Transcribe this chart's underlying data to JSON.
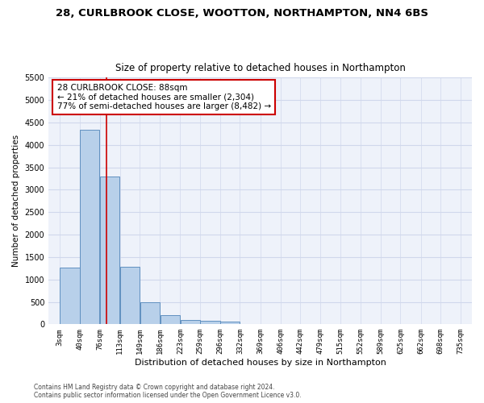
{
  "title": "28, CURLBROOK CLOSE, WOOTTON, NORTHAMPTON, NN4 6BS",
  "subtitle": "Size of property relative to detached houses in Northampton",
  "xlabel": "Distribution of detached houses by size in Northampton",
  "ylabel": "Number of detached properties",
  "footnote": "Contains HM Land Registry data © Crown copyright and database right 2024.\nContains public sector information licensed under the Open Government Licence v3.0.",
  "bar_values": [
    1260,
    4330,
    3300,
    1280,
    490,
    210,
    90,
    70,
    60,
    0,
    0,
    0,
    0,
    0,
    0,
    0,
    0,
    0,
    0,
    0
  ],
  "bin_edges": [
    3,
    40,
    76,
    113,
    149,
    186,
    223,
    259,
    296,
    332,
    369,
    406,
    442,
    479,
    515,
    552,
    589,
    625,
    662,
    698,
    735
  ],
  "bar_color": "#b8d0ea",
  "bar_edge_color": "#6090c0",
  "property_size": 88,
  "property_label": "28 CURLBROOK CLOSE: 88sqm",
  "pct_smaller": 21,
  "n_smaller": 2304,
  "pct_larger_semi": 77,
  "n_larger_semi": 8482,
  "ylim": [
    0,
    5500
  ],
  "yticks": [
    0,
    500,
    1000,
    1500,
    2000,
    2500,
    3000,
    3500,
    4000,
    4500,
    5000,
    5500
  ],
  "bg_color": "#eef2fa",
  "grid_color": "#d0d8ec",
  "annotation_box_color": "#cc0000",
  "vline_color": "#cc0000"
}
